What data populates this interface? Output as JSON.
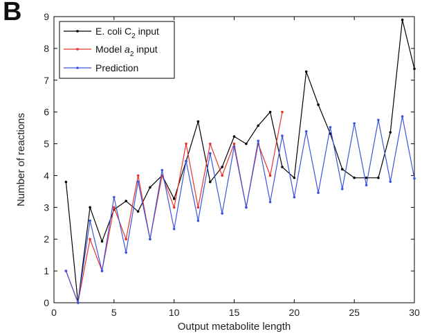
{
  "panel_label": "B",
  "chart_data": {
    "type": "line",
    "title": "",
    "xlabel": "Output metabolite length",
    "ylabel": "Number of reactions",
    "xlim": [
      0,
      30
    ],
    "ylim": [
      0,
      9
    ],
    "xticks": [
      0,
      5,
      10,
      15,
      20,
      25,
      30
    ],
    "yticks": [
      0,
      1,
      2,
      3,
      4,
      5,
      6,
      7,
      8,
      9
    ],
    "grid": false,
    "legend_position": "top-left",
    "series": [
      {
        "name": "E. coli C2 input",
        "legend_parts": [
          "E. coli C",
          "2",
          " input"
        ],
        "color": "#000000",
        "x": [
          1,
          2,
          3,
          4,
          5,
          6,
          7,
          8,
          9,
          10,
          11,
          12,
          13,
          14,
          15,
          16,
          17,
          18,
          19,
          20,
          21,
          22,
          23,
          24,
          25,
          26,
          27,
          28,
          29,
          30
        ],
        "y": [
          3.8,
          0,
          3,
          1.93,
          2.93,
          3.2,
          2.87,
          3.63,
          4,
          3.27,
          4.45,
          5.7,
          3.8,
          4.27,
          5.23,
          5,
          5.57,
          6,
          4.27,
          3.93,
          7.27,
          6.23,
          5.32,
          4.2,
          3.93,
          3.93,
          3.93,
          5.36,
          8.9,
          7.36
        ]
      },
      {
        "name": "Model a2 input",
        "legend_parts": [
          "Model ",
          "a",
          "2",
          " input"
        ],
        "color": "#e8312a",
        "x": [
          1,
          2,
          3,
          4,
          5,
          6,
          7,
          8,
          9,
          10,
          11,
          12,
          13,
          14,
          15,
          16,
          17,
          18,
          19
        ],
        "y": [
          1,
          0,
          2,
          1,
          3,
          2,
          4,
          2,
          4,
          3,
          5,
          3,
          5,
          4,
          5,
          3,
          5,
          4,
          6
        ]
      },
      {
        "name": "Prediction",
        "legend_parts": [
          "Prediction"
        ],
        "color": "#3a55e0",
        "x": [
          1,
          2,
          3,
          4,
          5,
          6,
          7,
          8,
          9,
          10,
          11,
          12,
          13,
          14,
          15,
          16,
          17,
          18,
          19,
          20,
          21,
          22,
          23,
          24,
          25,
          26,
          27,
          28,
          29,
          30
        ],
        "y": [
          1,
          0,
          2.58,
          1,
          3.32,
          1.58,
          3.81,
          2,
          4.17,
          2.32,
          4.46,
          2.58,
          4.7,
          2.81,
          4.91,
          3,
          5.09,
          3.17,
          5.25,
          3.32,
          5.39,
          3.46,
          5.52,
          3.58,
          5.64,
          3.7,
          5.75,
          3.81,
          5.86,
          3.91
        ]
      }
    ]
  }
}
